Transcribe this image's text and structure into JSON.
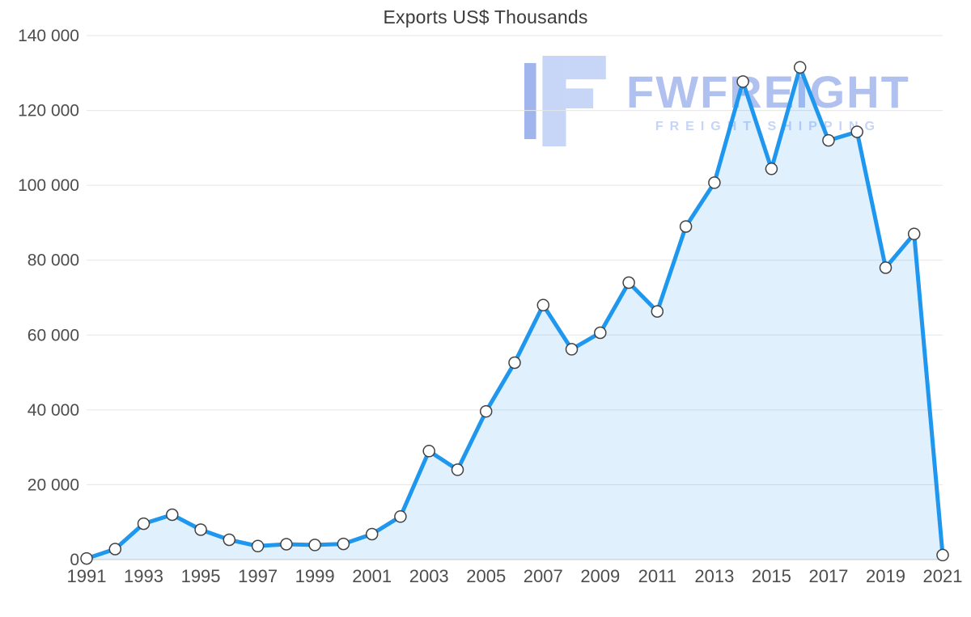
{
  "chart_data": {
    "type": "area",
    "title": "Exports US$ Thousands",
    "xlabel": "",
    "ylabel": "",
    "legend": "none",
    "grid": "horizontal",
    "x": [
      1991,
      1992,
      1993,
      1994,
      1995,
      1996,
      1997,
      1998,
      1999,
      2000,
      2001,
      2002,
      2003,
      2004,
      2005,
      2006,
      2007,
      2008,
      2009,
      2010,
      2011,
      2012,
      2013,
      2014,
      2015,
      2016,
      2017,
      2018,
      2019,
      2020,
      2021
    ],
    "values": [
      300,
      2800,
      9600,
      12000,
      8000,
      5300,
      3600,
      4100,
      3900,
      4200,
      6800,
      11500,
      29000,
      24000,
      39600,
      52600,
      68000,
      56200,
      60600,
      74000,
      66300,
      89000,
      100700,
      127700,
      104400,
      131500,
      112000,
      114300,
      78000,
      87000,
      1200
    ],
    "ylim": [
      0,
      140000
    ],
    "y_ticks": [
      0,
      20000,
      40000,
      60000,
      80000,
      100000,
      120000,
      140000
    ],
    "y_tick_labels": [
      "0",
      "20 000",
      "40 000",
      "60 000",
      "80 000",
      "100 000",
      "120 000",
      "140 000"
    ],
    "x_tick_labels": [
      "1991",
      "1993",
      "1995",
      "1997",
      "1999",
      "2001",
      "2003",
      "2005",
      "2007",
      "2009",
      "2011",
      "2013",
      "2015",
      "2017",
      "2019",
      "2021"
    ],
    "colors": {
      "line": "#1f97ee",
      "area": "rgba(33,150,243,0.14)",
      "marker_fill": "#ffffff",
      "marker_stroke": "#424242",
      "gridline": "#e6e6e6",
      "baseline": "#cccccc",
      "tick_label": "#4d4d4d"
    }
  },
  "watermark": {
    "brand": "FWFREIGHT",
    "tagline": "FREIGHT SHIPPING"
  }
}
